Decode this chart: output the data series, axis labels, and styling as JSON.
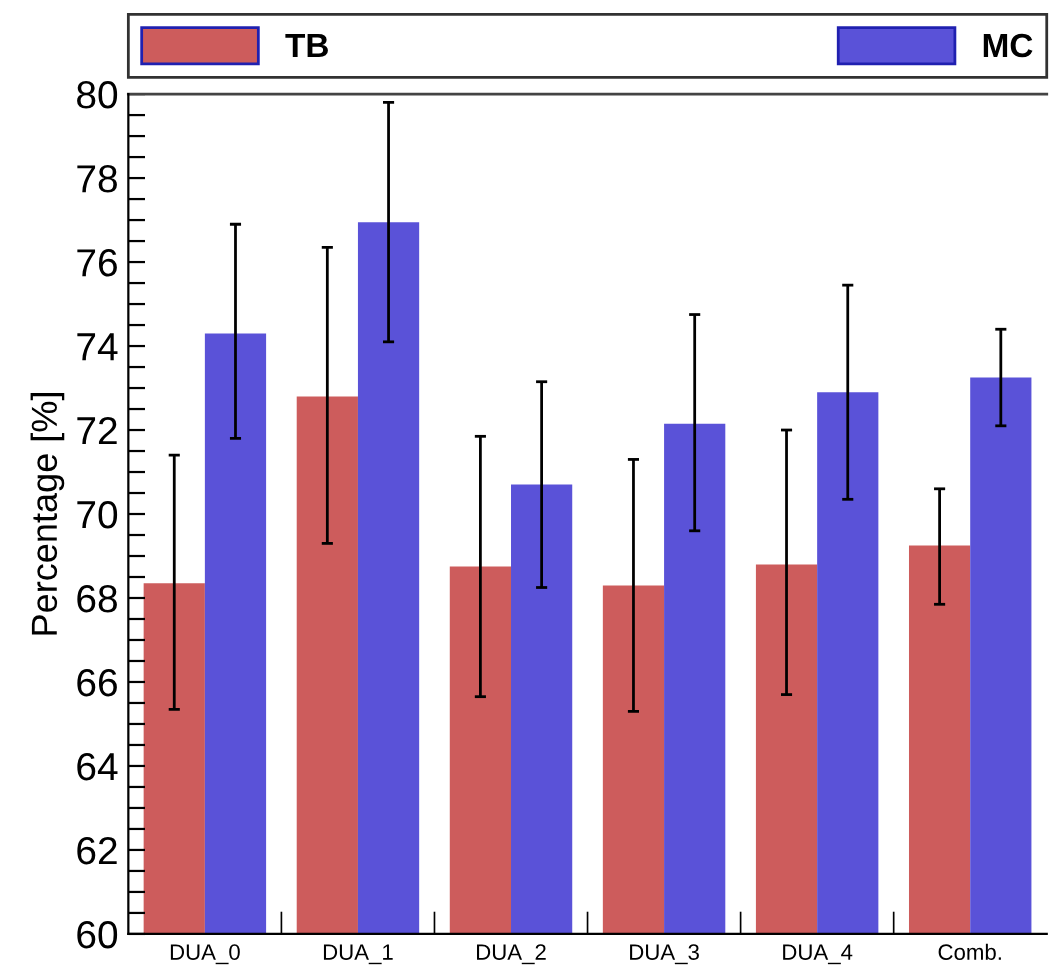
{
  "chart_data": {
    "type": "bar",
    "ylabel": "Percentage [%]",
    "categories": [
      "DUA_0",
      "DUA_1",
      "DUA_2",
      "DUA_3",
      "DUA_4",
      "Comb."
    ],
    "series": [
      {
        "name": "TB",
        "color": "#cd5c5c",
        "values": [
          68.35,
          72.8,
          68.75,
          68.3,
          68.8,
          69.25
        ],
        "errors": [
          [
            65.35,
            71.4
          ],
          [
            69.3,
            76.35
          ],
          [
            65.65,
            71.85
          ],
          [
            65.3,
            71.3
          ],
          [
            65.7,
            72.0
          ],
          [
            67.85,
            70.6
          ]
        ]
      },
      {
        "name": "MC",
        "color": "#5a52d8",
        "values": [
          74.3,
          76.95,
          70.7,
          72.15,
          72.9,
          73.25
        ],
        "errors": [
          [
            71.8,
            76.9
          ],
          [
            74.1,
            79.8
          ],
          [
            68.25,
            73.15
          ],
          [
            69.6,
            74.75
          ],
          [
            70.35,
            75.45
          ],
          [
            72.1,
            74.4
          ]
        ]
      }
    ],
    "ylim": [
      60,
      80
    ],
    "yticks": [
      60,
      {
        "value": 60.5,
        "label": null
      },
      {
        "value": 61,
        "label": null
      },
      {
        "value": 61.5,
        "label": null
      },
      62,
      {
        "value": 62.5,
        "label": null
      },
      {
        "value": 63,
        "label": null
      },
      {
        "value": 63.5,
        "label": null
      },
      64,
      {
        "value": 64.5,
        "label": null
      },
      {
        "value": 65,
        "label": null
      },
      {
        "value": 65.5,
        "label": null
      },
      66,
      {
        "value": 66.5,
        "label": null
      },
      {
        "value": 67,
        "label": null
      },
      {
        "value": 67.5,
        "label": null
      },
      68,
      {
        "value": 68.5,
        "label": null
      },
      {
        "value": 69,
        "label": null
      },
      {
        "value": 69.5,
        "label": null
      },
      70,
      {
        "value": 70.5,
        "label": null
      },
      {
        "value": 71,
        "label": null
      },
      {
        "value": 71.5,
        "label": null
      },
      72,
      {
        "value": 72.5,
        "label": null
      },
      {
        "value": 73,
        "label": null
      },
      {
        "value": 73.5,
        "label": null
      },
      74,
      {
        "value": 74.5,
        "label": null
      },
      {
        "value": 75,
        "label": null
      },
      {
        "value": 75.5,
        "label": null
      },
      76,
      {
        "value": 76.5,
        "label": null
      },
      {
        "value": 77,
        "label": null
      },
      {
        "value": 77.5,
        "label": null
      },
      78,
      {
        "value": 78.5,
        "label": null
      },
      {
        "value": 79,
        "label": null
      },
      {
        "value": 79.5,
        "label": null
      },
      80
    ],
    "grid": false,
    "legend": "top"
  }
}
